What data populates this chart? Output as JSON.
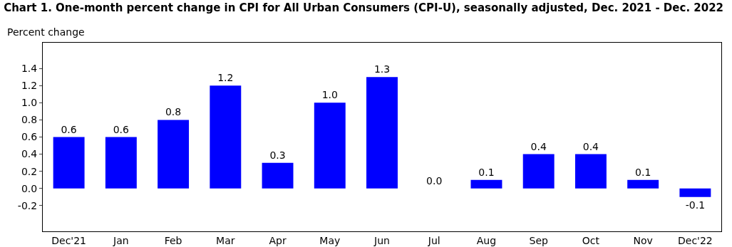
{
  "chart_data": {
    "type": "bar",
    "title": "Chart 1. One-month percent change in CPI for All Urban Consumers (CPI-U), seasonally adjusted, Dec. 2021 - Dec. 2022",
    "ylabel": "Percent change",
    "categories": [
      "Dec'21",
      "Jan",
      "Feb",
      "Mar",
      "Apr",
      "May",
      "Jun",
      "Jul",
      "Aug",
      "Sep",
      "Oct",
      "Nov",
      "Dec'22"
    ],
    "values": [
      0.6,
      0.6,
      0.8,
      1.2,
      0.3,
      1.0,
      1.3,
      0.0,
      0.1,
      0.4,
      0.4,
      0.1,
      -0.1
    ],
    "value_labels": [
      "0.6",
      "0.6",
      "0.8",
      "1.2",
      "0.3",
      "1.0",
      "1.3",
      "0.0",
      "0.1",
      "0.4",
      "0.4",
      "0.1",
      "-0.1"
    ],
    "color": "#0000ff",
    "ylim": [
      -0.5,
      1.7
    ],
    "yticks": [
      {
        "value": -0.2,
        "label": "-0.2"
      },
      {
        "value": 0,
        "label": "0.0"
      },
      {
        "value": 0.2,
        "label": "0.2"
      },
      {
        "value": 0.4,
        "label": "0.4"
      },
      {
        "value": 0.6,
        "label": "0.6"
      },
      {
        "value": 0.8,
        "label": "0.8"
      },
      {
        "value": 1.0,
        "label": "1.0"
      },
      {
        "value": 1.2,
        "label": "1.2"
      },
      {
        "value": 1.4,
        "label": "1.4"
      }
    ],
    "grid": false,
    "legend": false
  }
}
